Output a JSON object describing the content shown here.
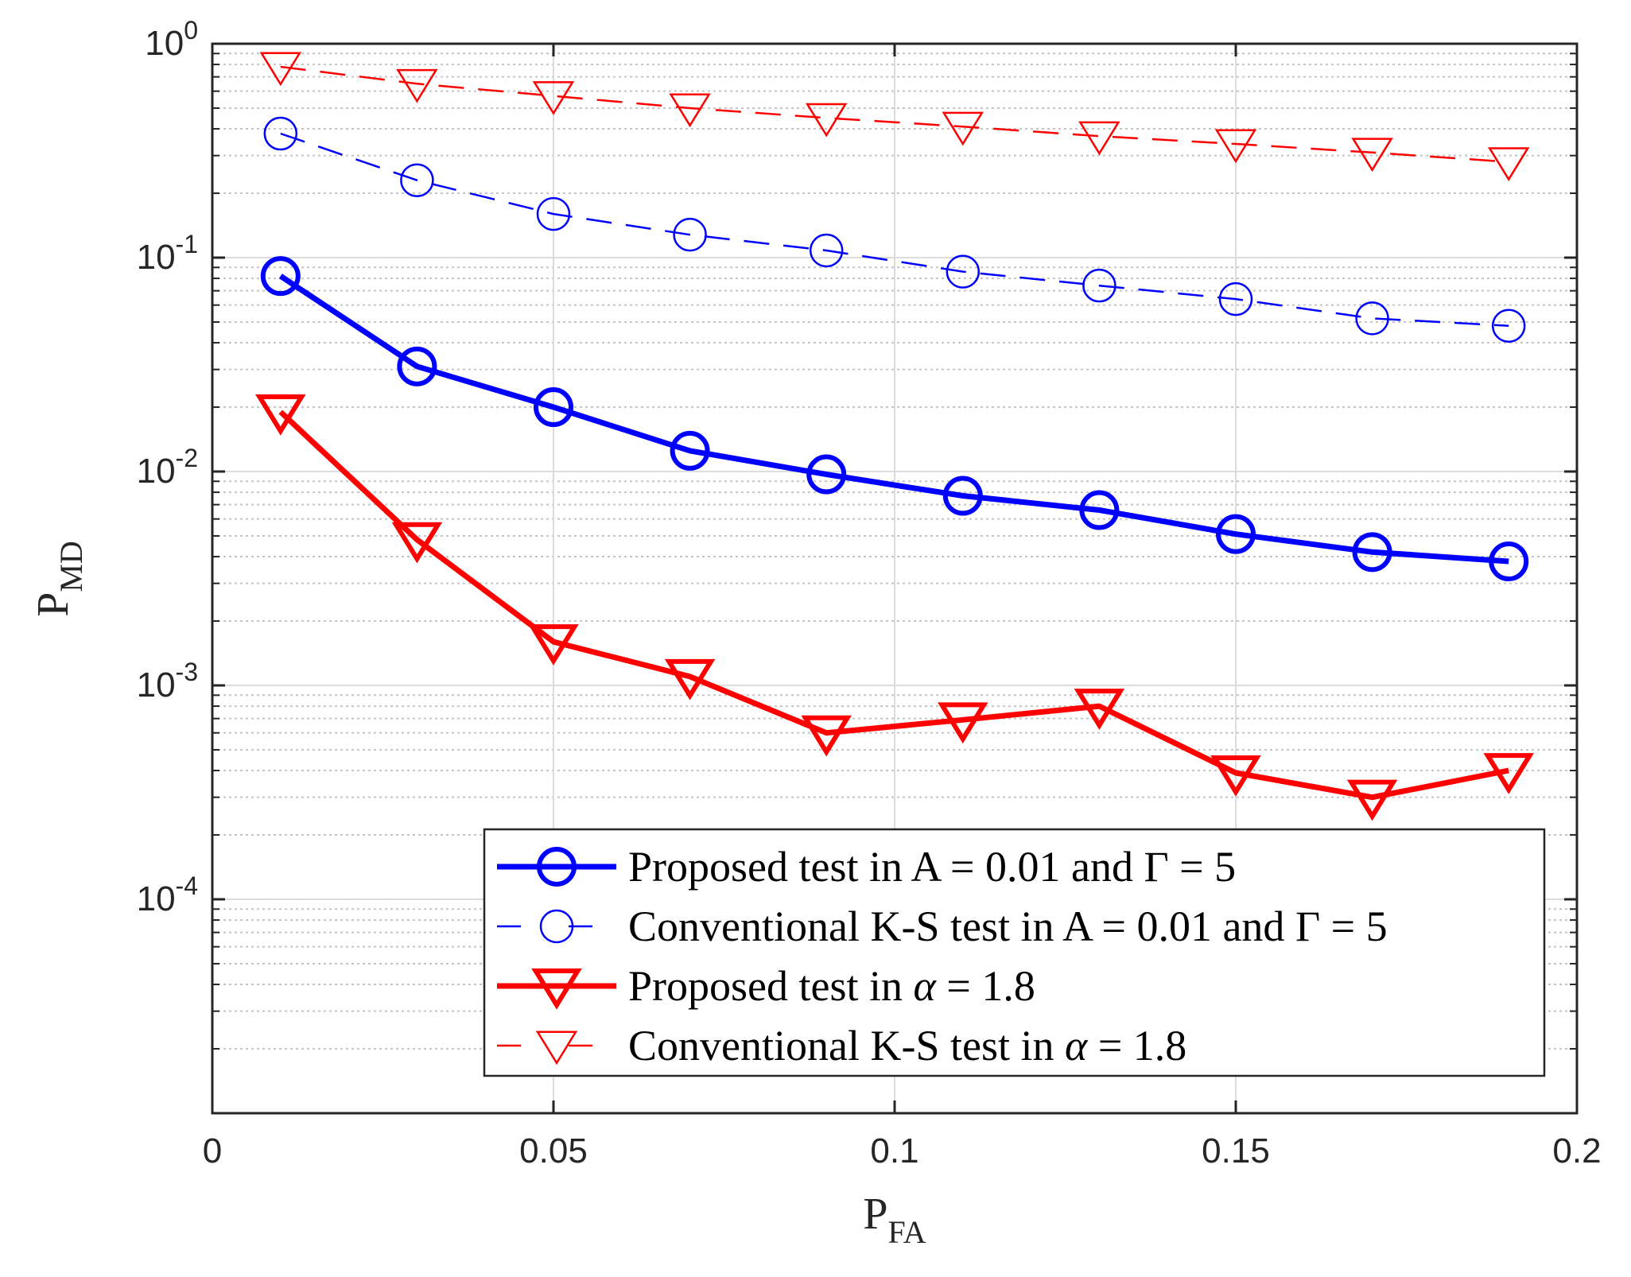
{
  "chart_data": {
    "type": "line",
    "title": "",
    "xlabel": {
      "main": "P",
      "sub": "FA"
    },
    "ylabel": {
      "main": "P",
      "sub": "MD"
    },
    "xlim": [
      0,
      0.2
    ],
    "ylim": [
      1e-05,
      1
    ],
    "yscale": "log",
    "grid": true,
    "x_ticks": [
      {
        "value": 0,
        "label": "0"
      },
      {
        "value": 0.05,
        "label": "0.05"
      },
      {
        "value": 0.1,
        "label": "0.1"
      },
      {
        "value": 0.15,
        "label": "0.15"
      },
      {
        "value": 0.2,
        "label": "0.2"
      }
    ],
    "y_ticks": [
      {
        "value": 1,
        "base": "10",
        "exp": "0"
      },
      {
        "value": 0.1,
        "base": "10",
        "exp": "-1"
      },
      {
        "value": 0.01,
        "base": "10",
        "exp": "-2"
      },
      {
        "value": 0.001,
        "base": "10",
        "exp": "-3"
      },
      {
        "value": 0.0001,
        "base": "10",
        "exp": "-4"
      }
    ],
    "x": [
      0.01,
      0.03,
      0.05,
      0.07,
      0.09,
      0.11,
      0.13,
      0.15,
      0.17,
      0.19
    ],
    "series": [
      {
        "name": "Proposed test in A = 0.01 and Γ = 5",
        "legend_parts": [
          "Proposed test in A = 0.01 and ",
          "Γ",
          " = 5"
        ],
        "color": "#0000ff",
        "marker": "circle",
        "dash": "solid",
        "width": "thick",
        "values": [
          0.082,
          0.031,
          0.02,
          0.0125,
          0.0097,
          0.0077,
          0.0066,
          0.0051,
          0.0042,
          0.0038
        ]
      },
      {
        "name": "Conventional K-S test in A = 0.01 and Γ = 5",
        "legend_parts": [
          "Conventional K-S test in A = 0.01 and ",
          "Γ",
          " = 5"
        ],
        "color": "#0000ff",
        "marker": "circle",
        "dash": "dashed",
        "width": "thin",
        "values": [
          0.38,
          0.23,
          0.16,
          0.128,
          0.108,
          0.086,
          0.074,
          0.064,
          0.052,
          0.048
        ]
      },
      {
        "name": "Proposed test in α = 1.8",
        "legend_parts": [
          "Proposed test in ",
          "α",
          " = 1.8"
        ],
        "color": "#ff0000",
        "marker": "triangle-down",
        "dash": "solid",
        "width": "thick",
        "values": [
          0.019,
          0.0048,
          0.0016,
          0.0011,
          0.0006,
          0.00069,
          0.0008,
          0.00039,
          0.0003,
          0.0004
        ]
      },
      {
        "name": "Conventional K-S test in α = 1.8",
        "legend_parts": [
          "Conventional K-S test in ",
          "α",
          " = 1.8"
        ],
        "color": "#ff0000",
        "marker": "triangle-down",
        "dash": "dashed",
        "width": "thin",
        "values": [
          0.78,
          0.65,
          0.57,
          0.5,
          0.45,
          0.41,
          0.37,
          0.34,
          0.31,
          0.28
        ]
      }
    ],
    "legend": "bottom-right"
  }
}
